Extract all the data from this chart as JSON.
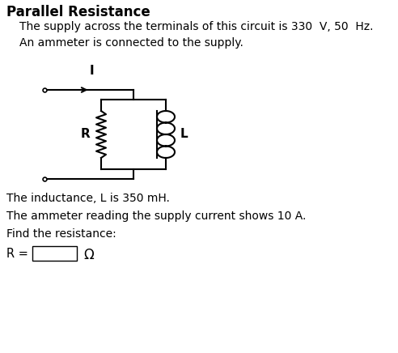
{
  "title": "Parallel Resistance",
  "line1": "The supply across the terminals of this circuit is 330  V, 50  Hz.",
  "line2": "An ammeter is connected to the supply.",
  "line3": "The inductance, L is 350 mH.",
  "line4": "The ammeter reading the supply current shows 10 A.",
  "line5": "Find the resistance:",
  "label_R": "R",
  "label_L": "L",
  "label_I": "I",
  "label_eq": "R =",
  "label_omega": "Ω",
  "bg_color": "#ffffff",
  "text_color": "#000000"
}
